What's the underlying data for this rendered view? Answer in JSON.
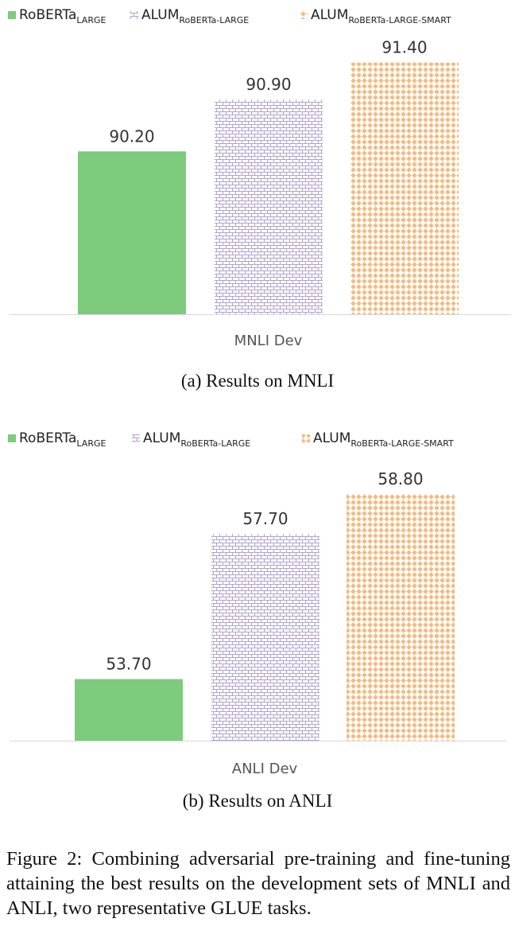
{
  "chart_data": [
    {
      "type": "bar",
      "categories": [
        "MNLI Dev"
      ],
      "series": [
        {
          "name": "RoBERTa",
          "sub": "LARGE",
          "values": [
            90.2
          ],
          "label": "90.20",
          "color": "#7dcb7d",
          "pattern": "solid"
        },
        {
          "name": "ALUM",
          "sub": "RoBERTa-LARGE",
          "values": [
            90.9
          ],
          "label": "90.90",
          "color": "#b3a2cf",
          "pattern": "brick"
        },
        {
          "name": "ALUM",
          "sub": "RoBERTa-LARGE-SMART",
          "values": [
            91.4
          ],
          "label": "91.40",
          "color": "#f6b97c",
          "pattern": "diamond"
        }
      ],
      "ylim": [
        88.0,
        91.6
      ],
      "xlabel": "MNLI Dev",
      "caption": "(a)  Results on MNLI"
    },
    {
      "type": "bar",
      "categories": [
        "ANLI Dev"
      ],
      "series": [
        {
          "name": "RoBERTa",
          "sub": "LARGE",
          "values": [
            53.7
          ],
          "label": "53.70",
          "color": "#7dcb7d",
          "pattern": "solid"
        },
        {
          "name": "ALUM",
          "sub": "RoBERTa-LARGE",
          "values": [
            57.7
          ],
          "label": "57.70",
          "color": "#b3a2cf",
          "pattern": "brick"
        },
        {
          "name": "ALUM",
          "sub": "RoBERTa-LARGE-SMART",
          "values": [
            58.8
          ],
          "label": "58.80",
          "color": "#f6b97c",
          "pattern": "diamond"
        }
      ],
      "ylim": [
        52.0,
        59.0
      ],
      "xlabel": "ANLI Dev",
      "caption": "(b)  Results on ANLI"
    }
  ],
  "figure_caption": "Figure 2: Combining adversarial pre-training and fine-tuning attaining the best results on the development sets of MNLI and ANLI, two representative GLUE tasks."
}
